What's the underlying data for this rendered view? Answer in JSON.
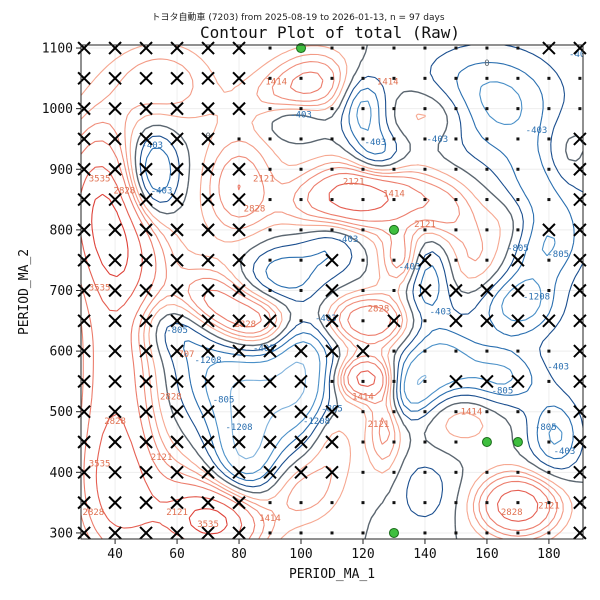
{
  "chart_data": {
    "type": "contour",
    "suptitle": "トヨタ自動車 (7203) from 2025-08-19 to 2026-01-13, n = 97 days",
    "title": "Contour Plot of total (Raw)",
    "xlabel": "PERIOD_MA_1",
    "ylabel": "PERIOD_MA_2",
    "xlim": [
      29,
      191
    ],
    "ylim": [
      290,
      1105
    ],
    "xticks": [
      40,
      60,
      80,
      100,
      120,
      140,
      160,
      180
    ],
    "yticks": [
      300,
      400,
      500,
      600,
      700,
      800,
      900,
      1000,
      1100
    ],
    "grid": true,
    "colormap": "RdBu diverging (red = positive, blue = negative)",
    "contour_level_labels": [
      -1208,
      -805,
      -403,
      0,
      403,
      707,
      1010,
      1414,
      2121,
      2828,
      3535
    ],
    "contour_label_color": "#4a90c8",
    "positive_color": "#d7301f",
    "neutral_color": "#555555",
    "negative_color": "#2166ac",
    "grid_x": [
      30,
      40,
      50,
      60,
      70,
      80,
      90,
      100,
      110,
      120,
      130,
      140,
      150,
      160,
      170,
      180,
      190
    ],
    "grid_y": [
      300,
      350,
      400,
      450,
      500,
      550,
      600,
      650,
      700,
      750,
      800,
      850,
      900,
      950,
      1000,
      1050,
      1100
    ],
    "markers": {
      "dot": "sampled parameter pair",
      "x": "excluded / losing pair",
      "green": "best pairs"
    },
    "x_points": [
      [
        30,
        1100
      ],
      [
        40,
        1100
      ],
      [
        50,
        1100
      ],
      [
        60,
        1100
      ],
      [
        70,
        1100
      ],
      [
        80,
        1100
      ],
      [
        180,
        1100
      ],
      [
        190,
        1100
      ],
      [
        30,
        1050
      ],
      [
        40,
        1050
      ],
      [
        50,
        1050
      ],
      [
        60,
        1050
      ],
      [
        70,
        1050
      ],
      [
        80,
        1050
      ],
      [
        30,
        1000
      ],
      [
        40,
        1000
      ],
      [
        50,
        1000
      ],
      [
        60,
        1000
      ],
      [
        70,
        1000
      ],
      [
        80,
        1000
      ],
      [
        30,
        950
      ],
      [
        40,
        950
      ],
      [
        50,
        950
      ],
      [
        60,
        950
      ],
      [
        70,
        950
      ],
      [
        190,
        950
      ],
      [
        30,
        900
      ],
      [
        40,
        900
      ],
      [
        50,
        900
      ],
      [
        60,
        900
      ],
      [
        70,
        900
      ],
      [
        80,
        900
      ],
      [
        190,
        900
      ],
      [
        30,
        850
      ],
      [
        40,
        850
      ],
      [
        50,
        850
      ],
      [
        60,
        850
      ],
      [
        70,
        850
      ],
      [
        80,
        850
      ],
      [
        190,
        850
      ],
      [
        30,
        800
      ],
      [
        40,
        800
      ],
      [
        50,
        800
      ],
      [
        60,
        800
      ],
      [
        70,
        800
      ],
      [
        80,
        800
      ],
      [
        180,
        800
      ],
      [
        190,
        800
      ],
      [
        30,
        750
      ],
      [
        40,
        750
      ],
      [
        50,
        750
      ],
      [
        60,
        750
      ],
      [
        70,
        750
      ],
      [
        80,
        750
      ],
      [
        110,
        750
      ],
      [
        140,
        750
      ],
      [
        170,
        750
      ],
      [
        190,
        750
      ],
      [
        30,
        700
      ],
      [
        40,
        700
      ],
      [
        50,
        700
      ],
      [
        60,
        700
      ],
      [
        70,
        700
      ],
      [
        80,
        700
      ],
      [
        110,
        700
      ],
      [
        140,
        700
      ],
      [
        150,
        700
      ],
      [
        160,
        700
      ],
      [
        170,
        700
      ],
      [
        190,
        700
      ],
      [
        30,
        650
      ],
      [
        40,
        650
      ],
      [
        50,
        650
      ],
      [
        60,
        650
      ],
      [
        70,
        650
      ],
      [
        80,
        650
      ],
      [
        90,
        650
      ],
      [
        110,
        650
      ],
      [
        130,
        650
      ],
      [
        150,
        650
      ],
      [
        160,
        650
      ],
      [
        170,
        650
      ],
      [
        180,
        650
      ],
      [
        190,
        650
      ],
      [
        30,
        600
      ],
      [
        40,
        600
      ],
      [
        50,
        600
      ],
      [
        60,
        600
      ],
      [
        70,
        600
      ],
      [
        80,
        600
      ],
      [
        90,
        600
      ],
      [
        100,
        600
      ],
      [
        110,
        600
      ],
      [
        120,
        600
      ],
      [
        190,
        600
      ],
      [
        30,
        550
      ],
      [
        40,
        550
      ],
      [
        50,
        550
      ],
      [
        60,
        550
      ],
      [
        70,
        550
      ],
      [
        80,
        550
      ],
      [
        90,
        550
      ],
      [
        100,
        550
      ],
      [
        150,
        550
      ],
      [
        160,
        550
      ],
      [
        170,
        550
      ],
      [
        190,
        550
      ],
      [
        30,
        500
      ],
      [
        40,
        500
      ],
      [
        50,
        500
      ],
      [
        60,
        500
      ],
      [
        70,
        500
      ],
      [
        80,
        500
      ],
      [
        90,
        500
      ],
      [
        100,
        500
      ],
      [
        110,
        500
      ],
      [
        190,
        500
      ],
      [
        30,
        450
      ],
      [
        40,
        450
      ],
      [
        50,
        450
      ],
      [
        60,
        450
      ],
      [
        70,
        450
      ],
      [
        80,
        450
      ],
      [
        90,
        450
      ],
      [
        100,
        450
      ],
      [
        110,
        450
      ],
      [
        190,
        450
      ],
      [
        30,
        400
      ],
      [
        40,
        400
      ],
      [
        50,
        400
      ],
      [
        60,
        400
      ],
      [
        70,
        400
      ],
      [
        80,
        400
      ],
      [
        90,
        400
      ],
      [
        100,
        400
      ],
      [
        110,
        400
      ],
      [
        190,
        400
      ],
      [
        30,
        350
      ],
      [
        40,
        350
      ],
      [
        50,
        350
      ],
      [
        60,
        350
      ],
      [
        70,
        350
      ],
      [
        80,
        350
      ],
      [
        190,
        350
      ],
      [
        30,
        300
      ],
      [
        40,
        300
      ],
      [
        50,
        300
      ],
      [
        60,
        300
      ],
      [
        70,
        300
      ],
      [
        80,
        300
      ],
      [
        190,
        300
      ]
    ],
    "green_points": [
      [
        100,
        1100
      ],
      [
        130,
        800
      ],
      [
        160,
        450
      ],
      [
        170,
        450
      ],
      [
        130,
        300
      ]
    ]
  }
}
